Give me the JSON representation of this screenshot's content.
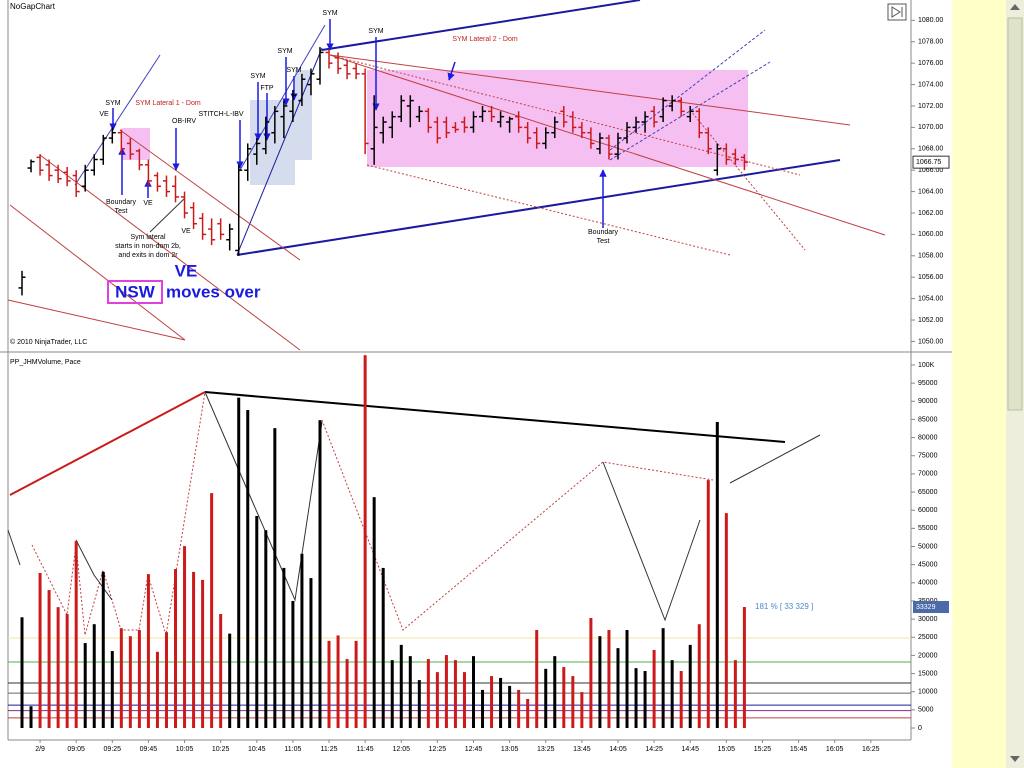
{
  "chart_data": [
    {
      "type": "ohlc",
      "title": "NoGapChart",
      "copyright": "© 2010 NinjaTrader, LLC",
      "open": [
        1055,
        1066.2,
        1067.2,
        1066.5,
        1066,
        1065.8,
        1065.5,
        1064.5,
        1066,
        1067,
        1069,
        1069.5,
        1068.5,
        1067.8,
        1066.5,
        1065.5,
        1065,
        1064.5,
        1063.5,
        1062.5,
        1061.5,
        1060.5,
        1061,
        1059.5,
        1058.5,
        1066,
        1067.5,
        1068,
        1069.5,
        1071,
        1071.5,
        1072.5,
        1074,
        1074.5,
        1077,
        1076.5,
        1075.8,
        1075.5,
        1075,
        1068,
        1069.5,
        1070,
        1071,
        1072,
        1071,
        1071.5,
        1070.5,
        1070.5,
        1070,
        1070.5,
        1070,
        1071,
        1071.5,
        1070.5,
        1070.5,
        1071,
        1070,
        1069.5,
        1068.5,
        1069.5,
        1071.5,
        1071,
        1070,
        1069.5,
        1068,
        1069,
        1067.5,
        1069,
        1070,
        1070.5,
        1071.5,
        1071,
        1072,
        1072.5,
        1071,
        1071.5,
        1069.5,
        1066,
        1068,
        1067.5,
        1067.2
      ],
      "high": [
        1056.6,
        1067,
        1067.5,
        1067,
        1066.5,
        1066.3,
        1066,
        1066.5,
        1067.5,
        1069.3,
        1070,
        1069.8,
        1069,
        1068,
        1067,
        1065.8,
        1065.5,
        1065.5,
        1064,
        1063,
        1062,
        1061.5,
        1061.5,
        1061,
        1066.5,
        1068.5,
        1069,
        1071,
        1072,
        1072.5,
        1073.5,
        1075,
        1075.5,
        1077.5,
        1077.3,
        1077,
        1076.3,
        1076,
        1075.5,
        1073,
        1071,
        1071.5,
        1073,
        1073,
        1072,
        1071.8,
        1071,
        1071,
        1070.5,
        1071,
        1071.5,
        1072,
        1072,
        1071.5,
        1071,
        1071.5,
        1070.5,
        1070,
        1070,
        1071,
        1072,
        1071.5,
        1070.5,
        1070,
        1069.5,
        1069.3,
        1069.5,
        1070.5,
        1071,
        1071.5,
        1072,
        1072.8,
        1073,
        1072.8,
        1072,
        1071.8,
        1070,
        1068.5,
        1068.5,
        1068,
        1067.5
      ],
      "low": [
        1054.3,
        1065.8,
        1065.5,
        1065,
        1064.8,
        1064.5,
        1063.5,
        1064,
        1065.5,
        1066.5,
        1068.5,
        1067.5,
        1067,
        1066,
        1064.5,
        1064,
        1063.5,
        1063,
        1061.5,
        1060.5,
        1059.5,
        1059,
        1059.5,
        1058.5,
        1058,
        1065,
        1066.5,
        1067.5,
        1068.5,
        1069,
        1070.5,
        1072,
        1073,
        1074,
        1075.5,
        1075,
        1074.5,
        1074.5,
        1067.5,
        1066.5,
        1068.5,
        1069,
        1070.5,
        1070,
        1070.5,
        1069.5,
        1068.5,
        1069,
        1069.5,
        1069.5,
        1069.5,
        1070.5,
        1070.5,
        1070,
        1069.5,
        1069.5,
        1068.5,
        1068,
        1068,
        1069,
        1070,
        1069.5,
        1069,
        1068,
        1067.5,
        1067,
        1067,
        1068.5,
        1069.5,
        1069.5,
        1070,
        1070.5,
        1071.5,
        1071,
        1070.5,
        1069,
        1067.5,
        1065.5,
        1066.5,
        1066.5,
        1066
      ],
      "close": [
        1056,
        1066.8,
        1066,
        1065.5,
        1065.2,
        1065,
        1064,
        1066,
        1067,
        1069,
        1069.5,
        1068,
        1067.5,
        1066.5,
        1065,
        1064.5,
        1064,
        1063.5,
        1062,
        1061,
        1060,
        1059.5,
        1060,
        1060.5,
        1066,
        1068,
        1068.5,
        1070.5,
        1071.5,
        1072,
        1073,
        1074.5,
        1075,
        1077,
        1076,
        1075.5,
        1075,
        1075,
        1068.5,
        1070,
        1070.5,
        1071,
        1072.5,
        1072.5,
        1071.5,
        1070,
        1069,
        1069.5,
        1069.8,
        1070,
        1071,
        1071.5,
        1071,
        1071,
        1070.8,
        1070,
        1069,
        1068.5,
        1069.5,
        1070.5,
        1070.5,
        1070,
        1069.5,
        1068.5,
        1069,
        1067.5,
        1069,
        1070,
        1070.5,
        1071,
        1070.5,
        1072.5,
        1072.5,
        1071.5,
        1071.5,
        1069.5,
        1068,
        1068,
        1067,
        1067,
        1066.75
      ],
      "up_color": "#000000",
      "down_color": "#cc1a1a",
      "ylim": [
        1049.2,
        1081.9
      ],
      "yticks": [
        {
          "value": 1050,
          "label": "1050.00"
        },
        {
          "value": 1052,
          "label": "1052.00"
        },
        {
          "value": 1054,
          "label": "1054.00"
        },
        {
          "value": 1056,
          "label": "1056.00"
        },
        {
          "value": 1058,
          "label": "1058.00"
        },
        {
          "value": 1060,
          "label": "1060.00"
        },
        {
          "value": 1062,
          "label": "1062.00"
        },
        {
          "value": 1064,
          "label": "1064.00"
        },
        {
          "value": 1066,
          "label": "1066.00"
        },
        {
          "value": 1068,
          "label": "1068.00"
        },
        {
          "value": 1070,
          "label": "1070.00"
        },
        {
          "value": 1072,
          "label": "1072.00"
        },
        {
          "value": 1074,
          "label": "1074.00"
        },
        {
          "value": 1076,
          "label": "1076.00"
        },
        {
          "value": 1078,
          "label": "1078.00"
        },
        {
          "value": 1080,
          "label": "1080.00"
        }
      ],
      "annotations": [
        "SYM",
        "SYM",
        "SYM",
        "SYM",
        "SYM",
        "SYM",
        "FTP",
        "VE",
        "SYM Lateral 1 - Dom",
        "OB-IRV",
        "STITCH-L-IBV",
        "SYM Lateral 2 - Dom",
        "Boundary",
        "Test",
        "VE",
        "VE",
        "Sym lateral",
        "starts in non-dom 2b,",
        "and exits in dom 2r",
        "Boundary",
        "Test",
        "VE",
        "NSW",
        "moves over"
      ]
    },
    {
      "type": "bar",
      "title": "PP_JHMVolume, Pace",
      "categories": [
        null,
        null,
        "2/9",
        null,
        null,
        null,
        "09:05",
        null,
        null,
        null,
        "09:25",
        null,
        null,
        null,
        "09:45",
        null,
        null,
        null,
        "10:05",
        null,
        null,
        null,
        "10:25",
        null,
        null,
        null,
        "10:45",
        null,
        null,
        null,
        "11:05",
        null,
        null,
        null,
        "11:25",
        null,
        null,
        null,
        "11:45",
        null,
        null,
        null,
        "12:05",
        null,
        null,
        null,
        "12:25",
        null,
        null,
        null,
        "12:45",
        null,
        null,
        null,
        "13:05",
        null,
        null,
        null,
        "13:25",
        null,
        null,
        null,
        "13:45",
        null,
        null,
        null,
        "14:05",
        null,
        null,
        null,
        "14:25",
        null,
        null,
        null,
        "14:45",
        null,
        null,
        null,
        "15:05",
        null,
        null,
        null,
        "15:25",
        null,
        null,
        null,
        "15:45",
        null,
        null,
        null,
        "16:05",
        null,
        null,
        null,
        "16:25"
      ],
      "values": [
        30500,
        6000,
        42700,
        38000,
        33300,
        31400,
        51500,
        23400,
        28600,
        43000,
        21200,
        27500,
        25300,
        27000,
        42400,
        21000,
        26400,
        43800,
        50100,
        43000,
        40800,
        64700,
        31400,
        26000,
        91000,
        87600,
        58400,
        54500,
        82600,
        44100,
        35000,
        48000,
        41300,
        84800,
        24000,
        25500,
        19000,
        24000,
        102700,
        63600,
        44100,
        18700,
        22900,
        19800,
        13200,
        19000,
        15400,
        20100,
        18700,
        15400,
        19800,
        10500,
        14300,
        13800,
        11600,
        10500,
        8000,
        27000,
        16300,
        19800,
        16800,
        14300,
        9900,
        30300,
        25300,
        27000,
        22000,
        27000,
        16500,
        15700,
        21500,
        27500,
        18700,
        15700,
        22900,
        28600,
        68300,
        84300,
        59200,
        18700,
        33329,
        null,
        null,
        null,
        null,
        null,
        null,
        null,
        null,
        null,
        null,
        null,
        null,
        null,
        null
      ],
      "ylim": [
        -3300,
        102750
      ],
      "yticks": [
        0,
        5000,
        10000,
        15000,
        20000,
        25000,
        30000,
        35000,
        40000,
        45000,
        50000,
        55000,
        60000,
        65000,
        70000,
        75000,
        80000,
        85000,
        90000,
        95000,
        {
          "value": 100000,
          "label": "100K"
        }
      ],
      "levels": [
        {
          "value": 24800,
          "color": "#f2e6a0"
        },
        {
          "value": 18200,
          "color": "#4caf50"
        },
        {
          "value": 12400,
          "color": "#333333"
        },
        {
          "value": 9600,
          "color": "#666666"
        },
        {
          "value": 6300,
          "color": "#1a1aa0"
        },
        {
          "value": 4800,
          "color": "#8a2a8a"
        },
        {
          "value": 2800,
          "color": "#c04040"
        }
      ],
      "annotation": "181 % [ 33 329 ]"
    }
  ]
}
